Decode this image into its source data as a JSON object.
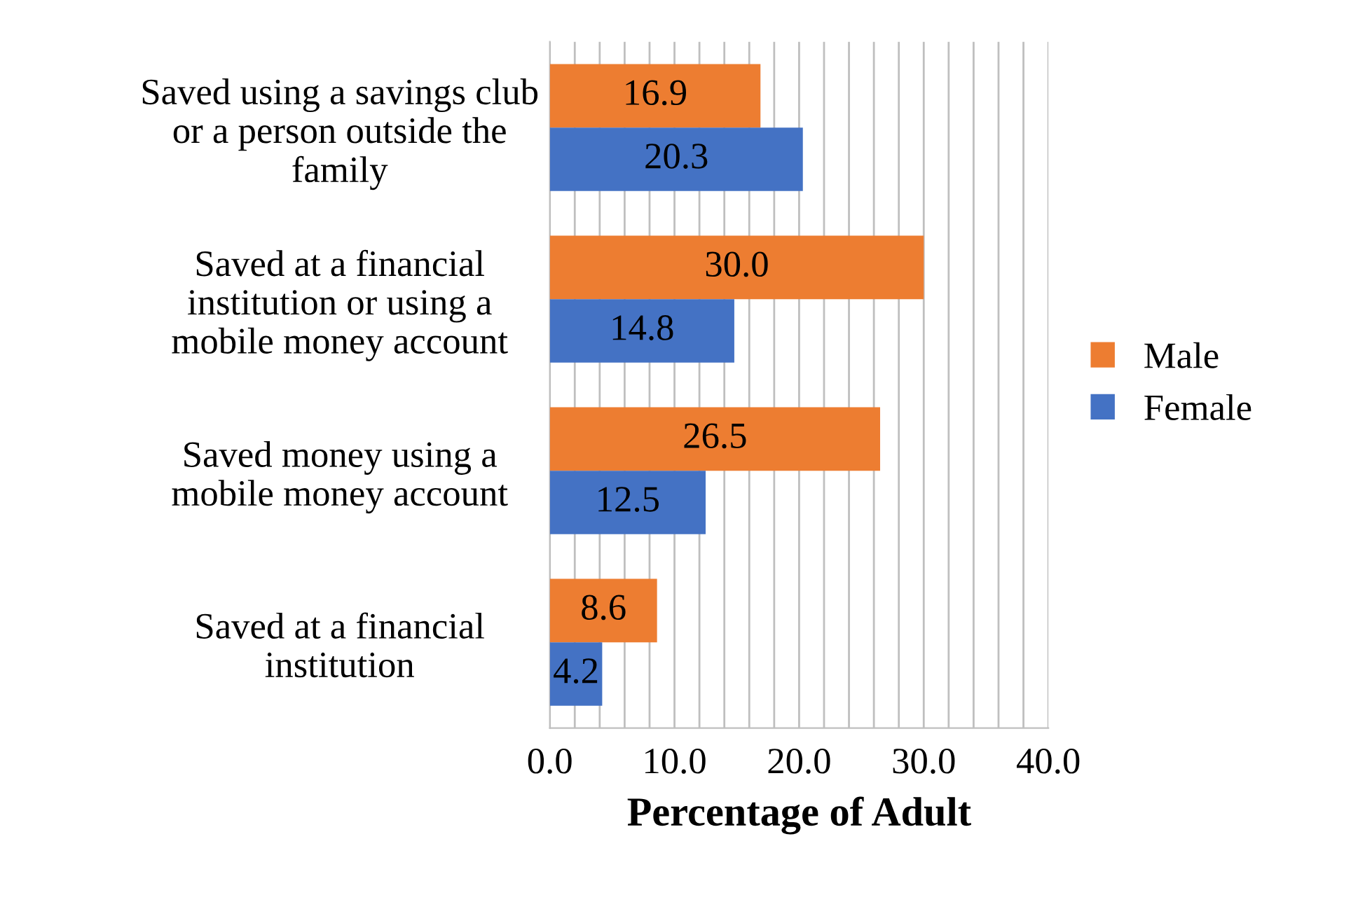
{
  "chart_data": {
    "type": "bar",
    "orientation": "horizontal",
    "xlabel": "Percentage of Adult",
    "categories": [
      "Saved using a savings club\nor a person outside the\nfamily",
      "Saved at a financial\ninstitution or using a\nmobile money account",
      "Saved money using a\nmobile money account",
      "Saved at a financial\ninstitution"
    ],
    "series": [
      {
        "name": "Male",
        "color": "#ed7d31",
        "values": [
          16.9,
          30.0,
          26.5,
          8.6
        ],
        "value_labels": [
          "16.9",
          "30.0",
          "26.5",
          "8.6"
        ]
      },
      {
        "name": "Female",
        "color": "#4472c4",
        "values": [
          20.3,
          14.8,
          12.5,
          4.2
        ],
        "value_labels": [
          "20.3",
          "14.8",
          "12.5",
          "4.2"
        ]
      }
    ],
    "xlim": [
      0,
      40
    ],
    "xticks": [
      {
        "value": 0,
        "label": "0.0"
      },
      {
        "value": 2,
        "label": null
      },
      {
        "value": 4,
        "label": null
      },
      {
        "value": 6,
        "label": null
      },
      {
        "value": 8,
        "label": null
      },
      {
        "value": 10,
        "label": "10.0"
      },
      {
        "value": 12,
        "label": null
      },
      {
        "value": 14,
        "label": null
      },
      {
        "value": 16,
        "label": null
      },
      {
        "value": 18,
        "label": null
      },
      {
        "value": 20,
        "label": "20.0"
      },
      {
        "value": 22,
        "label": null
      },
      {
        "value": 24,
        "label": null
      },
      {
        "value": 26,
        "label": null
      },
      {
        "value": 28,
        "label": null
      },
      {
        "value": 30,
        "label": "30.0"
      },
      {
        "value": 32,
        "label": null
      },
      {
        "value": 34,
        "label": null
      },
      {
        "value": 36,
        "label": null
      },
      {
        "value": 38,
        "label": null
      },
      {
        "value": 40,
        "label": "40.0"
      }
    ],
    "grid": "x",
    "legend": "right"
  }
}
